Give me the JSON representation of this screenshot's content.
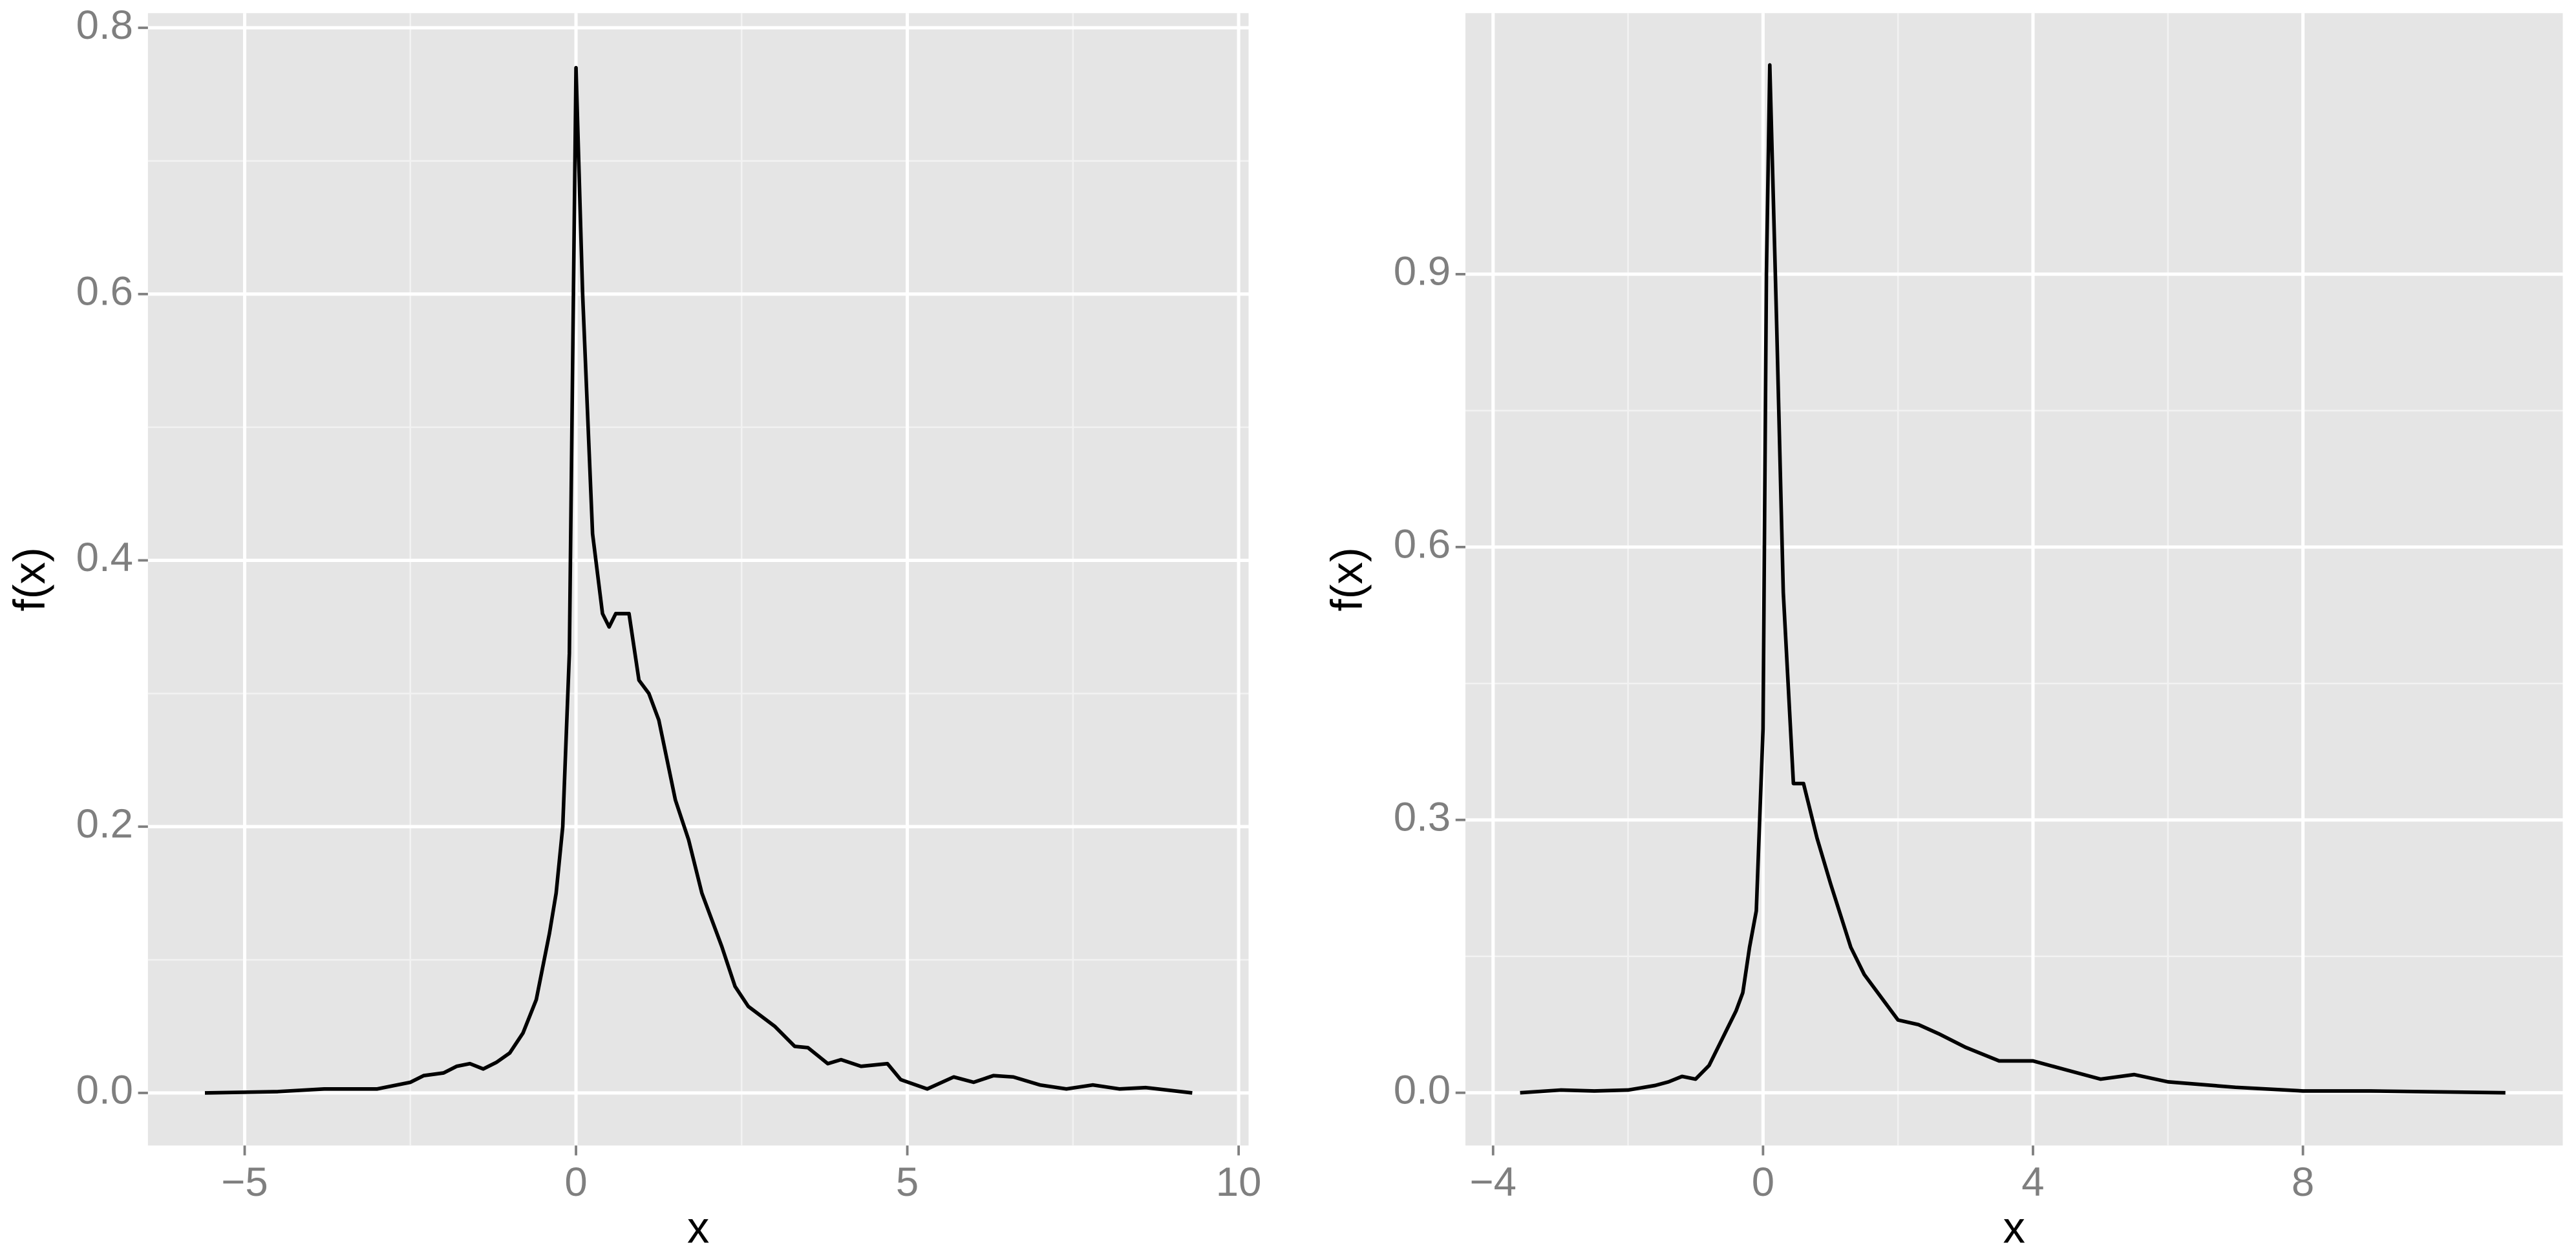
{
  "chart_data": [
    {
      "type": "line",
      "x_label": "x",
      "y_label": "f(x)",
      "color": "#000000",
      "grid": true,
      "xlim": [
        -6.46,
        10.15
      ],
      "ylim": [
        -0.0395,
        0.811
      ],
      "xticks": [
        {
          "value": -5,
          "label": "−5"
        },
        0,
        5,
        10
      ],
      "yticks": [
        {
          "value": 0,
          "label": "0.0"
        },
        0.2,
        0.4,
        0.6,
        0.8
      ],
      "x": [
        -5.6,
        -4.5,
        -3.8,
        -3,
        -2.5,
        -2.3,
        -2,
        -1.8,
        -1.6,
        -1.4,
        -1.2,
        -1,
        -0.8,
        -0.6,
        -0.4,
        -0.3,
        -0.2,
        -0.1,
        0,
        0.1,
        0.25,
        0.4,
        0.5,
        0.6,
        0.8,
        0.95,
        1.1,
        1.25,
        1.5,
        1.7,
        1.9,
        2.2,
        2.4,
        2.6,
        3,
        3.3,
        3.5,
        3.8,
        4,
        4.3,
        4.7,
        4.9,
        5.3,
        5.7,
        6,
        6.3,
        6.6,
        7,
        7.4,
        7.8,
        8.2,
        8.6,
        9.3
      ],
      "values": [
        0,
        0.001,
        0.003,
        0.003,
        0.008,
        0.013,
        0.015,
        0.02,
        0.022,
        0.018,
        0.023,
        0.03,
        0.045,
        0.07,
        0.12,
        0.15,
        0.2,
        0.33,
        0.77,
        0.6,
        0.42,
        0.36,
        0.35,
        0.36,
        0.36,
        0.31,
        0.3,
        0.28,
        0.22,
        0.19,
        0.15,
        0.11,
        0.08,
        0.065,
        0.05,
        0.035,
        0.034,
        0.022,
        0.025,
        0.02,
        0.022,
        0.01,
        0.003,
        0.012,
        0.008,
        0.013,
        0.012,
        0.006,
        0.003,
        0.006,
        0.003,
        0.004,
        0
      ]
    },
    {
      "type": "line",
      "x_label": "x",
      "y_label": "f(x)",
      "color": "#000000",
      "grid": true,
      "xlim": [
        -4.41,
        11.85
      ],
      "ylim": [
        -0.058,
        1.187
      ],
      "xticks": [
        {
          "value": -4,
          "label": "−4"
        },
        0,
        4,
        8
      ],
      "yticks": [
        {
          "value": 0,
          "label": "0.0"
        },
        0.3,
        0.6,
        0.9
      ],
      "x": [
        -3.6,
        -3,
        -2.5,
        -2,
        -1.6,
        -1.4,
        -1.2,
        -1,
        -0.8,
        -0.6,
        -0.4,
        -0.3,
        -0.2,
        -0.1,
        0,
        0.05,
        0.1,
        0.2,
        0.3,
        0.45,
        0.6,
        0.8,
        1,
        1.3,
        1.5,
        1.8,
        2,
        2.3,
        2.6,
        3,
        3.5,
        4,
        4.5,
        5,
        5.5,
        6,
        7,
        8,
        9,
        10,
        11
      ],
      "values": [
        0,
        0.003,
        0.002,
        0.003,
        0.008,
        0.012,
        0.018,
        0.015,
        0.03,
        0.06,
        0.09,
        0.11,
        0.16,
        0.2,
        0.4,
        0.9,
        1.13,
        0.85,
        0.55,
        0.34,
        0.34,
        0.28,
        0.23,
        0.16,
        0.13,
        0.1,
        0.08,
        0.075,
        0.065,
        0.05,
        0.035,
        0.035,
        0.025,
        0.015,
        0.02,
        0.012,
        0.006,
        0.002,
        0.002,
        0.001,
        0
      ]
    }
  ]
}
